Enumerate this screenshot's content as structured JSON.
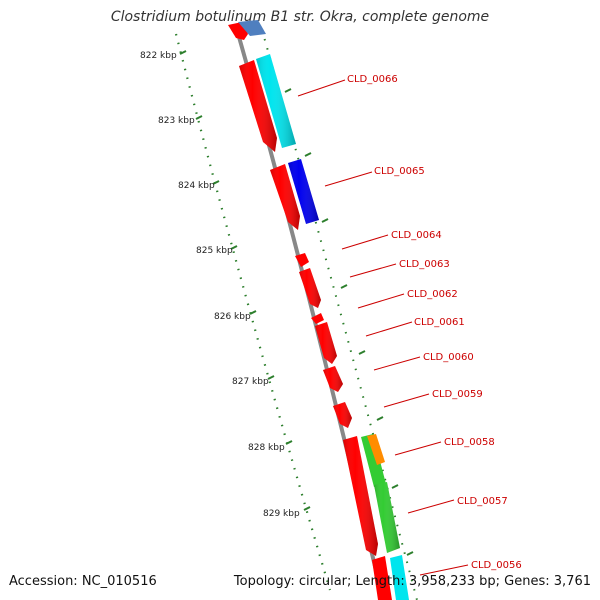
{
  "title": "Clostridium botulinum B1 str. Okra, complete genome",
  "footer": {
    "accession": "Accession: NC_010516",
    "topology": "Topology: circular; Length: 3,958,233 bp; Genes: 3,761"
  },
  "colors": {
    "gene_red": "#ff0000",
    "gene_cyan": "#00ffff",
    "gene_blue": "#0000ff",
    "gene_steelblue": "#4f7fbf",
    "gene_green": "#33cc33",
    "gene_orange": "#ff8c00",
    "label_red": "#cc0000",
    "ruler_green": "#2d7f2d",
    "backbone": "#888888"
  },
  "ruler": {
    "ticks": [
      "822 kbp",
      "823 kbp",
      "824 kbp",
      "825 kbp",
      "826 kbp",
      "827 kbp",
      "828 kbp",
      "829 kbp"
    ]
  },
  "gene_labels": [
    "CLD_0066",
    "CLD_0065",
    "CLD_0064",
    "CLD_0063",
    "CLD_0062",
    "CLD_0061",
    "CLD_0060",
    "CLD_0059",
    "CLD_0058",
    "CLD_0057",
    "CLD_0056"
  ]
}
